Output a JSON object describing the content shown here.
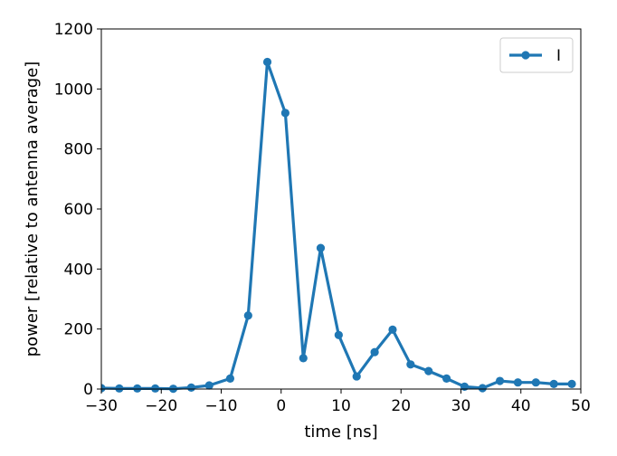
{
  "chart_data": {
    "type": "line",
    "title": "",
    "xlabel": "time [ns]",
    "ylabel": "power [relative to antenna average]",
    "xlim": [
      -30,
      50
    ],
    "ylim": [
      0,
      1200
    ],
    "xticks": [
      -30,
      -20,
      -10,
      0,
      10,
      20,
      30,
      40,
      50
    ],
    "yticks": [
      0,
      200,
      400,
      600,
      800,
      1000,
      1200
    ],
    "xtick_labels": [
      "−30",
      "−20",
      "−10",
      "0",
      "10",
      "20",
      "30",
      "40",
      "50"
    ],
    "ytick_labels": [
      "0",
      "200",
      "400",
      "600",
      "800",
      "1000",
      "1200"
    ],
    "grid": false,
    "legend_position": "top-right",
    "series": [
      {
        "name": "I",
        "color": "#1f77b4",
        "marker": "circle",
        "x": [
          -30,
          -27,
          -24,
          -21,
          -18,
          -15,
          -12,
          -8.5,
          -5.5,
          -2.3,
          0.7,
          3.7,
          6.6,
          9.6,
          12.6,
          15.6,
          18.6,
          21.6,
          24.6,
          27.6,
          30.6,
          33.6,
          36.5,
          39.5,
          42.5,
          45.5,
          48.5
        ],
        "y": [
          3,
          2,
          2,
          2,
          1,
          5,
          12,
          35,
          245,
          1090,
          920,
          103,
          470,
          180,
          42,
          123,
          198,
          82,
          60,
          35,
          8,
          3,
          27,
          22,
          22,
          17,
          17
        ]
      }
    ]
  }
}
